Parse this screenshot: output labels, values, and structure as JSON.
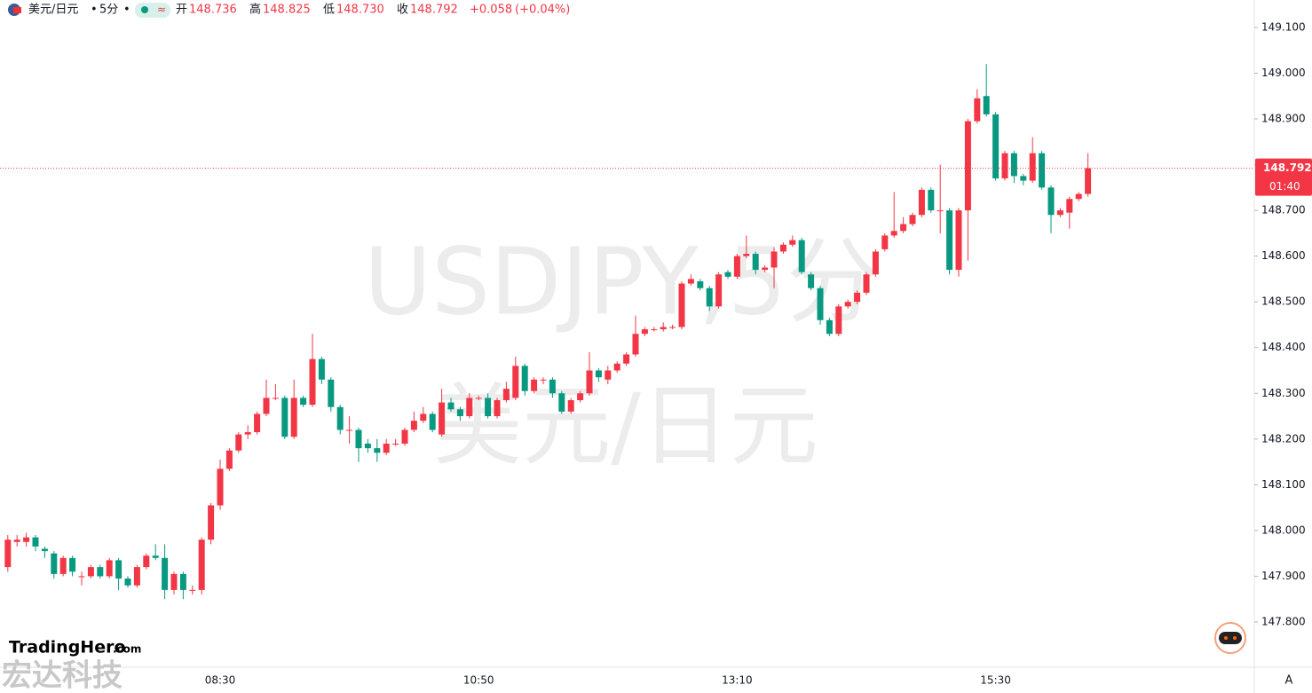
{
  "header": {
    "symbol": "美元/日元",
    "interval": "5分",
    "open_label": "开",
    "open": "148.736",
    "high_label": "高",
    "high": "148.825",
    "low_label": "低",
    "low": "148.730",
    "close_label": "收",
    "close": "148.792",
    "change": "+0.058",
    "change_pct": "(+0.04%)"
  },
  "watermark": {
    "line1": "USDJPY,5分",
    "line2": "美元/日元"
  },
  "logo": {
    "brand": "TradingHero",
    "suffix": ".com",
    "company": "宏达科技"
  },
  "corner_button": "A",
  "chart_data": {
    "type": "candlestick",
    "up_color": "#f23645",
    "down_color": "#089981",
    "ylim": [
      147.701,
      149.16
    ],
    "yticks": [
      {
        "value": 147.8,
        "label": "147.800"
      },
      {
        "value": 147.9,
        "label": "147.900"
      },
      {
        "value": 148.0,
        "label": "148.000"
      },
      {
        "value": 148.1,
        "label": "148.100"
      },
      {
        "value": 148.2,
        "label": "148.200"
      },
      {
        "value": 148.3,
        "label": "148.300"
      },
      {
        "value": 148.4,
        "label": "148.400"
      },
      {
        "value": 148.5,
        "label": "148.500"
      },
      {
        "value": 148.6,
        "label": "148.600"
      },
      {
        "value": 148.7,
        "label": "148.700"
      },
      {
        "value": 148.8,
        "label": "148.800"
      },
      {
        "value": 148.9,
        "label": "148.900"
      },
      {
        "value": 149.0,
        "label": "149.000"
      },
      {
        "value": 149.1,
        "label": "149.100"
      }
    ],
    "last_price": 148.792,
    "countdown": "01:40",
    "categories": [
      null,
      null,
      null,
      null,
      null,
      null,
      null,
      null,
      null,
      null,
      null,
      null,
      null,
      null,
      null,
      null,
      null,
      null,
      null,
      null,
      null,
      null,
      null,
      "08:30",
      null,
      null,
      null,
      null,
      null,
      null,
      null,
      null,
      null,
      null,
      null,
      null,
      null,
      null,
      null,
      null,
      null,
      null,
      null,
      null,
      null,
      null,
      null,
      null,
      null,
      null,
      null,
      "10:50",
      null,
      null,
      null,
      null,
      null,
      null,
      null,
      null,
      null,
      null,
      null,
      null,
      null,
      null,
      null,
      null,
      null,
      null,
      null,
      null,
      null,
      null,
      null,
      null,
      null,
      null,
      null,
      "13:10",
      null,
      null,
      null,
      null,
      null,
      null,
      null,
      null,
      null,
      null,
      null,
      null,
      null,
      null,
      null,
      null,
      null,
      null,
      null,
      null,
      null,
      null,
      null,
      null,
      null,
      null,
      null,
      "15:30",
      null,
      null,
      null,
      null,
      null,
      null,
      null,
      null,
      null,
      null
    ],
    "open": [
      147.92,
      147.975,
      147.975,
      147.985,
      147.96,
      147.95,
      147.905,
      147.94,
      147.9,
      147.9,
      147.92,
      147.9,
      147.935,
      147.895,
      147.88,
      147.92,
      147.945,
      147.94,
      147.87,
      147.905,
      147.87,
      147.87,
      147.98,
      148.055,
      148.135,
      148.175,
      148.21,
      148.215,
      148.255,
      148.29,
      148.29,
      148.205,
      148.29,
      148.275,
      148.375,
      148.33,
      148.27,
      148.22,
      148.22,
      148.19,
      148.18,
      148.17,
      148.19,
      148.19,
      148.22,
      148.24,
      148.255,
      148.21,
      148.28,
      148.265,
      148.25,
      148.29,
      148.29,
      148.25,
      148.285,
      148.29,
      148.36,
      148.305,
      148.33,
      148.33,
      148.3,
      148.26,
      148.285,
      148.3,
      148.35,
      148.33,
      148.35,
      148.365,
      148.385,
      148.43,
      148.44,
      148.44,
      148.445,
      148.445,
      148.54,
      148.545,
      148.53,
      148.49,
      148.565,
      148.555,
      148.6,
      148.605,
      148.57,
      148.575,
      148.61,
      148.625,
      148.635,
      148.56,
      148.53,
      148.46,
      148.43,
      148.49,
      148.5,
      148.52,
      148.56,
      148.615,
      148.645,
      148.655,
      148.67,
      148.69,
      148.745,
      148.7,
      148.7,
      148.57,
      148.7,
      148.895,
      148.95,
      148.91,
      148.77,
      148.825,
      148.775,
      148.765,
      148.825,
      148.75,
      148.69,
      148.695,
      148.725,
      148.736
    ],
    "high": [
      147.99,
      147.99,
      147.995,
      147.99,
      147.965,
      147.955,
      147.945,
      147.945,
      147.91,
      147.925,
      147.925,
      147.94,
      147.94,
      147.9,
      147.925,
      147.95,
      147.97,
      147.97,
      147.91,
      147.91,
      147.88,
      147.985,
      148.06,
      148.155,
      148.18,
      148.215,
      148.23,
      148.26,
      148.33,
      148.32,
      148.295,
      148.33,
      148.295,
      148.43,
      148.38,
      148.335,
      148.275,
      148.25,
      148.225,
      148.2,
      148.2,
      148.2,
      148.2,
      148.225,
      148.26,
      148.27,
      148.26,
      148.31,
      148.29,
      148.27,
      148.3,
      148.295,
      148.3,
      148.29,
      148.325,
      148.38,
      148.365,
      148.335,
      148.335,
      148.335,
      148.305,
      148.29,
      148.305,
      148.39,
      148.355,
      148.36,
      148.37,
      148.39,
      148.47,
      148.445,
      148.445,
      148.455,
      148.45,
      148.545,
      148.56,
      148.55,
      148.535,
      148.565,
      148.57,
      148.605,
      148.645,
      148.61,
      148.58,
      148.62,
      148.63,
      148.645,
      148.64,
      148.565,
      148.535,
      148.465,
      148.495,
      148.505,
      148.525,
      148.565,
      148.615,
      148.65,
      148.74,
      148.685,
      148.695,
      148.75,
      148.75,
      148.8,
      148.705,
      148.705,
      148.9,
      148.965,
      149.02,
      148.915,
      148.83,
      148.83,
      148.78,
      148.86,
      148.83,
      148.755,
      148.705,
      148.73,
      148.74,
      148.825
    ],
    "low": [
      147.91,
      147.965,
      147.965,
      147.955,
      147.94,
      147.895,
      147.9,
      147.9,
      147.88,
      147.895,
      147.895,
      147.895,
      147.87,
      147.875,
      147.875,
      147.915,
      147.935,
      147.85,
      147.86,
      147.85,
      147.86,
      147.86,
      147.97,
      148.045,
      148.13,
      148.17,
      148.2,
      148.21,
      148.25,
      148.285,
      148.2,
      148.2,
      148.27,
      148.27,
      148.32,
      148.26,
      148.21,
      148.19,
      148.15,
      148.17,
      148.15,
      148.165,
      148.185,
      148.185,
      148.215,
      148.235,
      148.215,
      148.205,
      148.26,
      148.24,
      148.245,
      148.285,
      148.245,
      148.245,
      148.28,
      148.285,
      148.295,
      148.3,
      148.32,
      148.29,
      148.255,
      148.255,
      148.28,
      148.295,
      148.325,
      148.32,
      148.345,
      148.36,
      148.38,
      148.425,
      148.435,
      148.435,
      148.44,
      148.44,
      148.535,
      148.525,
      148.48,
      148.485,
      148.55,
      148.55,
      148.595,
      148.56,
      148.565,
      148.53,
      148.605,
      148.62,
      148.56,
      148.525,
      148.45,
      148.425,
      148.425,
      148.485,
      148.495,
      148.515,
      148.555,
      148.61,
      148.64,
      148.65,
      148.665,
      148.685,
      148.695,
      148.65,
      148.56,
      148.555,
      148.59,
      148.89,
      148.905,
      148.765,
      148.765,
      148.76,
      148.755,
      148.76,
      148.745,
      148.65,
      148.685,
      148.66,
      148.72,
      148.73
    ],
    "close": [
      147.98,
      147.98,
      147.985,
      147.965,
      147.955,
      147.905,
      147.94,
      147.91,
      147.9,
      147.92,
      147.9,
      147.935,
      147.895,
      147.88,
      147.92,
      147.945,
      147.94,
      147.87,
      147.905,
      147.87,
      147.87,
      147.98,
      148.055,
      148.135,
      148.175,
      148.21,
      148.215,
      148.255,
      148.29,
      148.29,
      148.205,
      148.29,
      148.275,
      148.375,
      148.33,
      148.27,
      148.22,
      148.22,
      148.18,
      148.18,
      148.17,
      148.19,
      148.19,
      148.22,
      148.24,
      148.255,
      148.22,
      148.28,
      148.265,
      148.25,
      148.29,
      148.29,
      148.25,
      148.285,
      148.31,
      148.36,
      148.305,
      148.33,
      148.33,
      148.3,
      148.26,
      148.285,
      148.3,
      148.35,
      148.335,
      148.35,
      148.365,
      148.385,
      148.43,
      148.44,
      148.44,
      148.445,
      148.445,
      148.54,
      148.55,
      148.53,
      148.49,
      148.56,
      148.555,
      148.6,
      148.605,
      148.57,
      148.575,
      148.61,
      148.625,
      148.635,
      148.565,
      148.53,
      148.46,
      148.43,
      148.49,
      148.5,
      148.52,
      148.56,
      148.61,
      148.645,
      148.655,
      148.67,
      148.69,
      148.745,
      148.7,
      148.7,
      148.57,
      148.7,
      148.895,
      148.945,
      148.91,
      148.77,
      148.825,
      148.775,
      148.765,
      148.825,
      148.75,
      148.69,
      148.7,
      148.725,
      148.736,
      148.792
    ]
  }
}
